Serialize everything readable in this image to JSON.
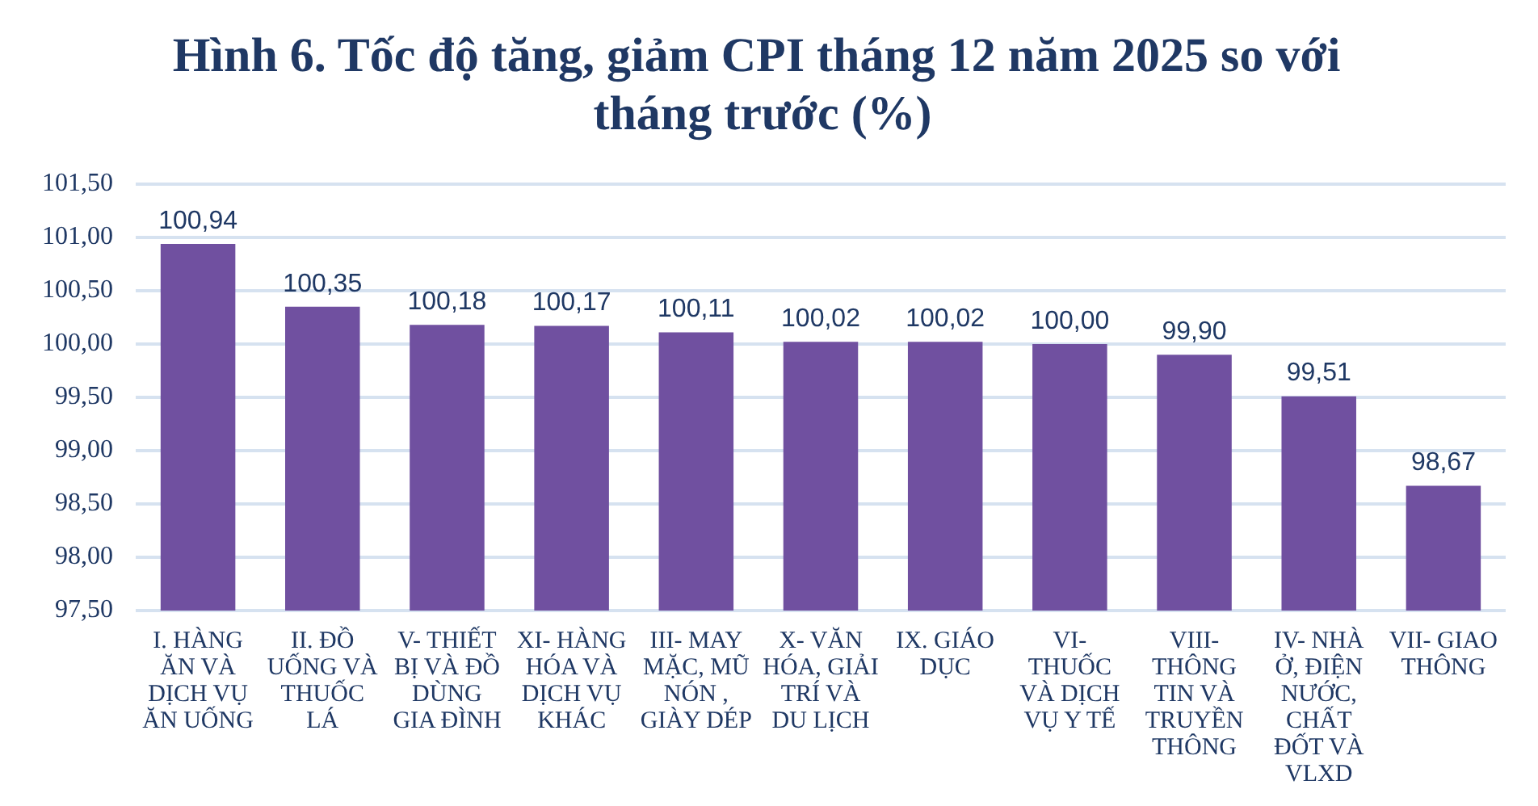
{
  "chart_data": {
    "type": "bar",
    "title": "Hình 6. Tốc độ tăng, giảm CPI tháng 12 năm 2025 so với  tháng trước (%)",
    "categories": [
      "I. HÀNG ĂN VÀ DỊCH VỤ ĂN UỐNG",
      "II. ĐỒ UỐNG VÀ THUỐC LÁ",
      "V- THIẾT BỊ VÀ ĐỒ DÙNG GIA ĐÌNH",
      "XI- HÀNG HÓA VÀ DỊCH VỤ KHÁC",
      "III- MAY MẶC, MŨ NÓN , GIÀY DÉP",
      "X- VĂN HÓA, GIẢI TRÍ VÀ DU LỊCH",
      "IX. GIÁO DỤC",
      "VI- THUỐC VÀ DỊCH VỤ Y TẾ",
      "VIII- THÔNG TIN VÀ TRUYỀN THÔNG",
      "IV- NHÀ Ở, ĐIỆN NƯỚC, CHẤT ĐỐT VÀ VLXD",
      "VII- GIAO THÔNG"
    ],
    "values": [
      100.94,
      100.35,
      100.18,
      100.17,
      100.11,
      100.02,
      100.02,
      100.0,
      99.9,
      99.51,
      98.67
    ],
    "value_labels": [
      "100,94",
      "100,35",
      "100,18",
      "100,17",
      "100,11",
      "100,02",
      "100,02",
      "100,00",
      "99,90",
      "99,51",
      "98,67"
    ],
    "color": "#7050a0",
    "ylim": [
      97.5,
      101.5
    ],
    "yticks": [
      {
        "value": 97.5,
        "label": "97,50"
      },
      {
        "value": 98,
        "label": "98,00"
      },
      {
        "value": 98.5,
        "label": "98,50"
      },
      {
        "value": 99,
        "label": "99,00"
      },
      {
        "value": 99.5,
        "label": "99,50"
      },
      {
        "value": 100,
        "label": "100,00"
      },
      {
        "value": 100.5,
        "label": "100,50"
      },
      {
        "value": 101,
        "label": "101,00"
      },
      {
        "value": 101.5,
        "label": "101,50"
      }
    ],
    "grid": "y"
  }
}
